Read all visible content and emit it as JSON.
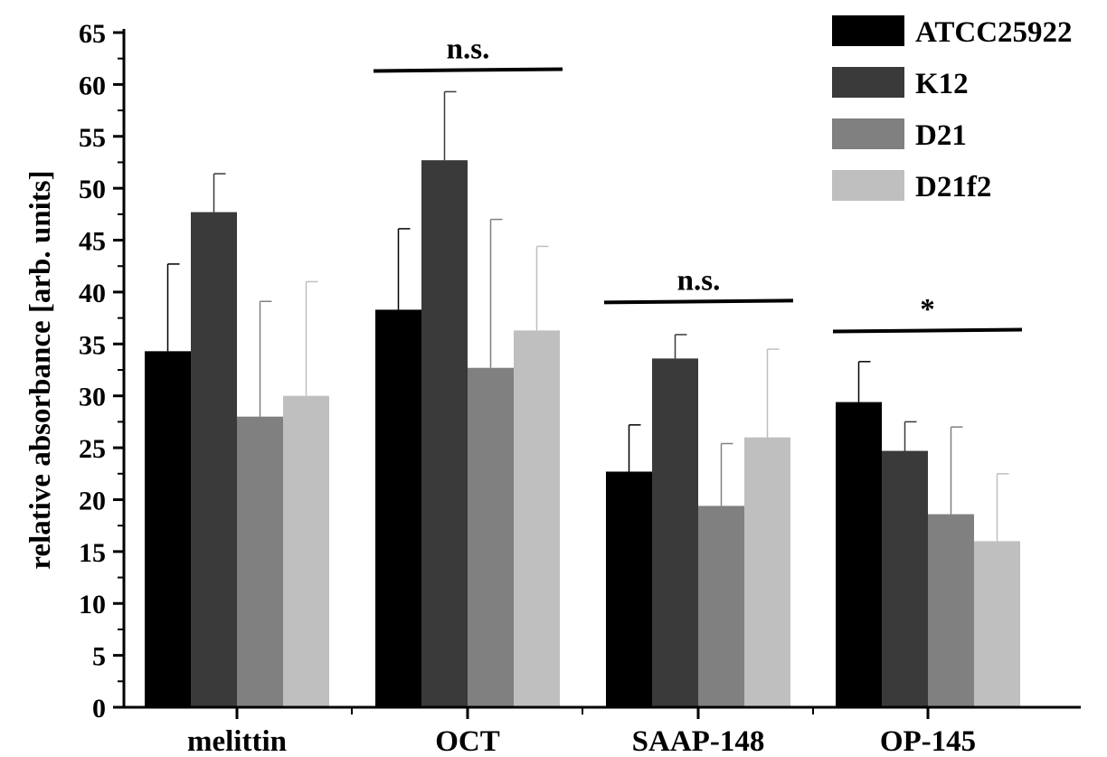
{
  "chart_data": {
    "type": "bar",
    "title": "",
    "xlabel": "",
    "ylabel": "relative absorbance [arb. units]",
    "ylim": [
      0,
      65
    ],
    "yticks": [
      "0",
      "5",
      "10",
      "15",
      "20",
      "25",
      "30",
      "35",
      "40",
      "45",
      "50",
      "55",
      "60",
      "65"
    ],
    "categories": [
      "melittin",
      "OCT",
      "SAAP-148",
      "OP-145"
    ],
    "series": [
      {
        "name": "ATCC25922",
        "color": "#000000",
        "values": [
          34.3,
          38.3,
          22.7,
          29.4
        ],
        "errors": [
          8.4,
          7.8,
          4.5,
          3.9
        ]
      },
      {
        "name": "K12",
        "color": "#3a3a3a",
        "values": [
          47.7,
          52.7,
          33.6,
          24.7
        ],
        "errors": [
          3.7,
          6.6,
          2.3,
          2.8
        ]
      },
      {
        "name": "D21",
        "color": "#808080",
        "values": [
          28.0,
          32.7,
          19.4,
          18.6
        ],
        "errors": [
          11.1,
          14.3,
          6.0,
          8.4
        ]
      },
      {
        "name": "D21f2",
        "color": "#bfbfbf",
        "values": [
          30.0,
          36.3,
          26.0,
          16.0
        ],
        "errors": [
          11.0,
          8.1,
          8.5,
          6.5
        ]
      }
    ],
    "annotations": [
      {
        "category": "OCT",
        "text": "n.s.",
        "y": 61.3
      },
      {
        "category": "SAAP-148",
        "text": "n.s.",
        "y": 39.0
      },
      {
        "category": "OP-145",
        "text": "*",
        "y": 36.2
      }
    ],
    "legend_position": "top-right",
    "grid": false
  }
}
